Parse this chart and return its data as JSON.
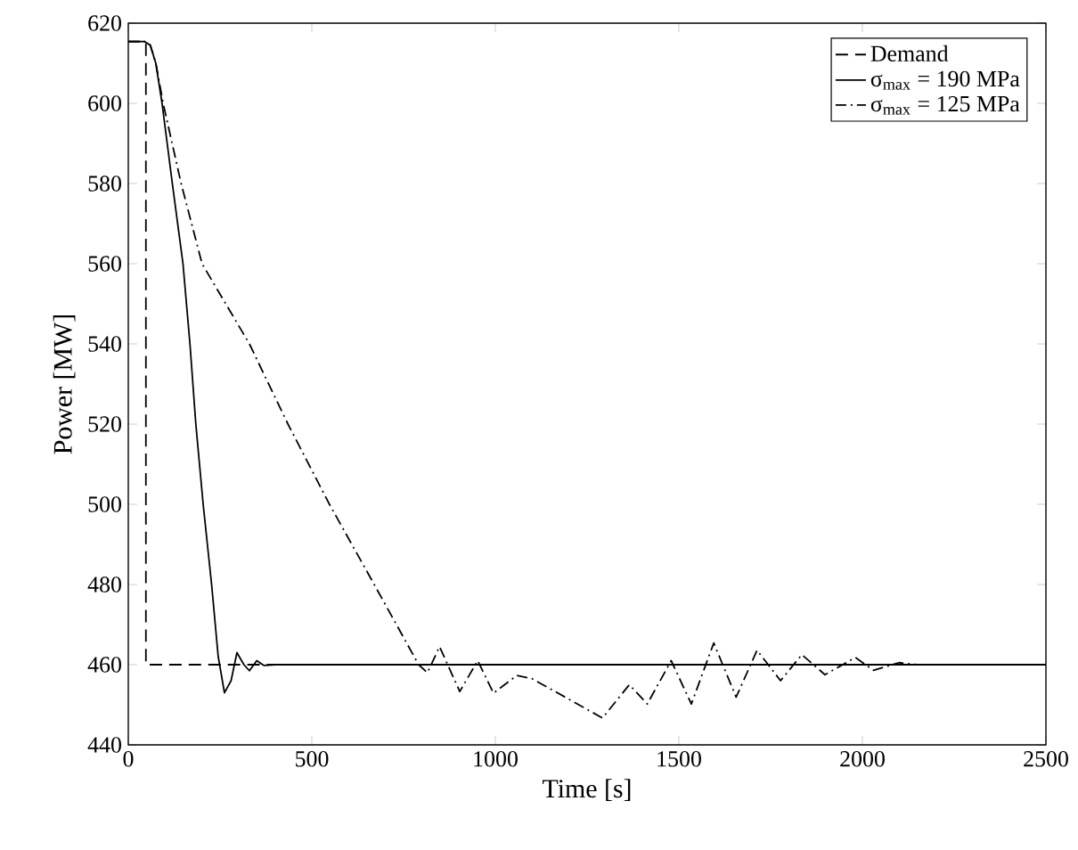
{
  "chart_data": {
    "type": "line",
    "xlabel": "Time [s]",
    "ylabel": "Power [MW]",
    "xlim": [
      0,
      2500
    ],
    "ylim": [
      440,
      620
    ],
    "xticks": [
      0,
      500,
      1000,
      1500,
      2000,
      2500
    ],
    "yticks": [
      440,
      460,
      480,
      500,
      520,
      540,
      560,
      580,
      600,
      620
    ],
    "grid": false,
    "legend": "top right",
    "marker": "none",
    "series": [
      {
        "name": "Demand",
        "color": "#000000",
        "line_style": "dashed",
        "x": [
          0,
          48,
          48,
          2500
        ],
        "values": [
          615.4,
          615.4,
          460,
          460
        ]
      },
      {
        "name": "σ$_{max}$ = 190 MPa",
        "color": "#000000",
        "line_style": "solid",
        "x": [
          0,
          45,
          60,
          75,
          92,
          120,
          149,
          168,
          184,
          204,
          227,
          245,
          262,
          280,
          296,
          315,
          330,
          350,
          370,
          400,
          2500
        ],
        "values": [
          615.4,
          615.4,
          614.5,
          610,
          600,
          580,
          560,
          540,
          520,
          500,
          480,
          462,
          453,
          456,
          463,
          460,
          458.5,
          461,
          459.8,
          460,
          460
        ]
      },
      {
        "name": "σ$_{max}$ = 125 MPa",
        "color": "#000000",
        "line_style": "dashdot",
        "x": [
          0,
          45,
          60,
          75,
          95,
          144,
          201,
          330,
          435,
          548,
          670,
          791,
          815,
          848,
          903,
          952,
          995,
          1058,
          1100,
          1292,
          1365,
          1414,
          1479,
          1534,
          1595,
          1656,
          1713,
          1777,
          1835,
          1898,
          1981,
          2030,
          2100,
          2150,
          2500
        ],
        "values": [
          615.4,
          615.4,
          614.5,
          610,
          600,
          580,
          560,
          540,
          520,
          500,
          480,
          460,
          458,
          464.5,
          453.3,
          461,
          452.9,
          457.3,
          456.5,
          446.7,
          455,
          450.2,
          461,
          450.2,
          465.4,
          451.9,
          463.6,
          456,
          462.5,
          457.5,
          461.8,
          458.6,
          460.5,
          460,
          460
        ]
      }
    ]
  }
}
